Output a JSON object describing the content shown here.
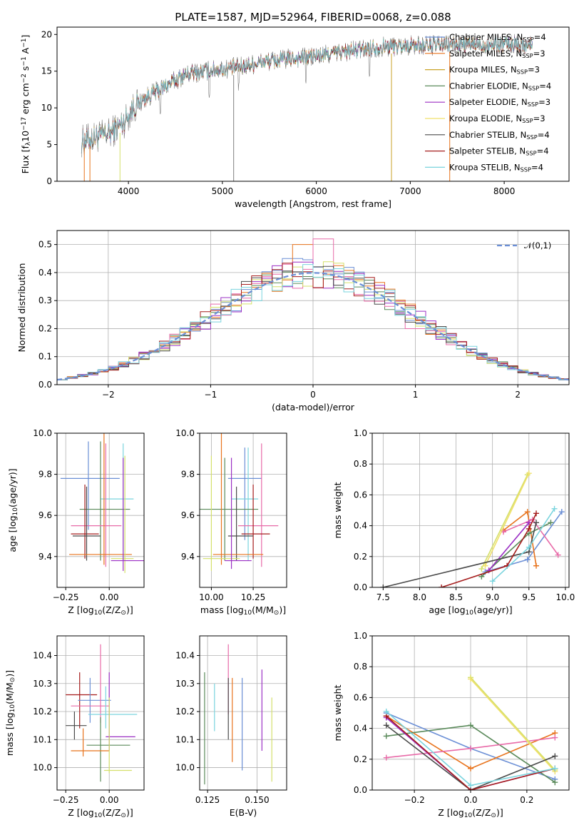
{
  "colors": {
    "palette": [
      "#6b8fd6",
      "#e8731c",
      "#5a8a5a",
      "#e86aa8",
      "#2a9c8e",
      "#9b2fc4",
      "#f0c84a",
      "#7ad4de",
      "#d4e06a",
      "#4a4a4a",
      "#a51c1c",
      "#8a8a8a"
    ],
    "data_spectrum": "#7f7f7f",
    "gaussian": "#6b8fd6"
  },
  "chart_data": [
    {
      "id": "spectrum",
      "type": "line",
      "title": "PLATE=1587, MJD=52964, FIBERID=0068, z=0.088",
      "xlabel": "wavelength [Angstrom, rest frame]",
      "ylabel": "Flux [f$_\\lambda$10$^{-17}$ erg cm$^{-2}$ s$^{-1}$ A$^{-1}$]",
      "xlim": [
        3240,
        8690
      ],
      "ylim": [
        0,
        21
      ],
      "xticks": [
        4000,
        5000,
        6000,
        7000,
        8000
      ],
      "yticks": [
        0,
        5,
        10,
        15,
        20
      ],
      "grid": false,
      "legend_placement": "top-right",
      "continuum": {
        "x": [
          3500,
          3650,
          3800,
          3950,
          4050,
          4200,
          4400,
          4600,
          4800,
          5000,
          5200,
          5400,
          5600,
          5800,
          6000,
          6200,
          6400,
          6600,
          6800,
          7000,
          7200,
          7400,
          7600,
          7800,
          8000,
          8200,
          8300
        ],
        "y": [
          5.5,
          6.0,
          6.5,
          8.0,
          10.0,
          11.5,
          13.0,
          14.5,
          15.0,
          15.3,
          15.6,
          16.2,
          16.5,
          16.8,
          17.0,
          17.5,
          17.8,
          18.2,
          18.4,
          18.5,
          18.5,
          18.6,
          18.6,
          18.6,
          18.7,
          18.6,
          18.5
        ]
      },
      "series": [
        {
          "name": "Chabrier MILES, N$_{SSP}$=4",
          "color": "#6b8fd6"
        },
        {
          "name": "Salpeter MILES, N$_{SSP}$=3",
          "color": "#e8731c"
        },
        {
          "name": "Kroupa MILES, N$_{SSP}$=3",
          "color": "#c9a227"
        },
        {
          "name": "Chabrier ELODIE, N$_{SSP}$=4",
          "color": "#5a8a5a"
        },
        {
          "name": "Salpeter ELODIE, N$_{SSP}$=3",
          "color": "#9b2fc4"
        },
        {
          "name": "Kroupa ELODIE, N$_{SSP}$=3",
          "color": "#f0e06a"
        },
        {
          "name": "Chabrier STELIB, N$_{SSP}$=4",
          "color": "#4a4a4a"
        },
        {
          "name": "Salpeter STELIB, N$_{SSP}$=4",
          "color": "#a51c1c"
        },
        {
          "name": "Kroupa STELIB, N$_{SSP}$=4",
          "color": "#7ad4de"
        }
      ]
    },
    {
      "id": "residuals",
      "type": "step",
      "xlabel": "(data-model)/error",
      "ylabel": "Normed distribution",
      "xlim": [
        -2.5,
        2.5
      ],
      "ylim": [
        0,
        0.55
      ],
      "xticks": [
        -2,
        -1,
        0,
        1,
        2
      ],
      "yticks": [
        0.0,
        0.1,
        0.2,
        0.3,
        0.4,
        0.5
      ],
      "grid": true,
      "legend_placement": "top-right",
      "gaussian_label": "$\\mathcal{N}(0,1)$",
      "bin_width": 0.1,
      "envelope_peak": 0.4,
      "series_colors": [
        "#6b8fd6",
        "#e8731c",
        "#5a8a5a",
        "#e86aa8",
        "#9b2fc4",
        "#d4e06a",
        "#4a4a4a",
        "#a51c1c",
        "#7ad4de"
      ],
      "highlights": [
        {
          "x": -1.0,
          "y": 0.24
        },
        {
          "x": -0.2,
          "y": 0.45
        },
        {
          "x": -0.1,
          "y": 0.5
        },
        {
          "x": 0.1,
          "y": 0.52
        },
        {
          "x": 0.4,
          "y": 0.38
        },
        {
          "x": 1.0,
          "y": 0.2
        }
      ]
    },
    {
      "id": "age_vs_Z",
      "type": "errorbar",
      "xlabel": "Z [log$_{10}$(Z/Z$_\\odot$)]",
      "ylabel": "age  [log$_{10}$(age/yr)]",
      "xlim": [
        -0.3,
        0.2
      ],
      "ylim": [
        9.25,
        10.0
      ],
      "xticks": [
        -0.25,
        0.0
      ],
      "xticklabels": [
        "−0.25",
        "0.00"
      ],
      "yticks": [
        9.4,
        9.6,
        9.8,
        10.0
      ],
      "grid": true,
      "points": [
        {
          "x": -0.12,
          "y": 9.78,
          "xerr": [
            0.16,
            0.18
          ],
          "yerr": [
            0.25,
            0.18
          ],
          "color": "#6b8fd6"
        },
        {
          "x": 0.08,
          "y": 9.68,
          "xerr": [
            0.13,
            0.06
          ],
          "yerr": [
            0.3,
            0.27
          ],
          "color": "#7ad4de"
        },
        {
          "x": -0.05,
          "y": 9.63,
          "xerr": [
            0.12,
            0.17
          ],
          "yerr": [
            0.25,
            0.33
          ],
          "color": "#5a8a5a"
        },
        {
          "x": -0.02,
          "y": 9.55,
          "xerr": [
            0.2,
            0.09
          ],
          "yerr": [
            0.2,
            0.4
          ],
          "color": "#e86aa8"
        },
        {
          "x": -0.14,
          "y": 9.51,
          "xerr": [
            0.08,
            0.08
          ],
          "yerr": [
            0.12,
            0.24
          ],
          "color": "#a51c1c"
        },
        {
          "x": -0.13,
          "y": 9.5,
          "xerr": [
            0.08,
            0.08
          ],
          "yerr": [
            0.12,
            0.24
          ],
          "color": "#4a4a4a"
        },
        {
          "x": -0.03,
          "y": 9.41,
          "xerr": [
            0.2,
            0.16
          ],
          "yerr": [
            0.05,
            0.65
          ],
          "color": "#e8731c"
        },
        {
          "x": 0.09,
          "y": 9.39,
          "xerr": [
            0.08,
            0.05
          ],
          "yerr": [
            0.07,
            0.5
          ],
          "color": "#d4e06a"
        },
        {
          "x": 0.08,
          "y": 9.38,
          "xerr": [
            0.07,
            0.13
          ],
          "yerr": [
            0.05,
            0.5
          ],
          "color": "#9b2fc4"
        }
      ]
    },
    {
      "id": "age_vs_mass",
      "type": "errorbar",
      "xlabel": "mass [log$_{10}$(M/M$_\\odot$)]",
      "ylabel": "",
      "xlim": [
        9.93,
        10.45
      ],
      "ylim": [
        9.25,
        10.0
      ],
      "xticks": [
        10.0,
        10.25
      ],
      "xticklabels": [
        "10.00",
        "10.25"
      ],
      "yticks": [
        9.4,
        9.6,
        9.8,
        10.0
      ],
      "grid": true,
      "points": [
        {
          "x": 10.2,
          "y": 9.78,
          "xerr": [
            0.1,
            0.1
          ],
          "yerr": [
            0.3,
            0.15
          ],
          "color": "#6b8fd6"
        },
        {
          "x": 10.22,
          "y": 9.68,
          "xerr": [
            0.1,
            0.06
          ],
          "yerr": [
            0.3,
            0.25
          ],
          "color": "#7ad4de"
        },
        {
          "x": 10.08,
          "y": 9.63,
          "xerr": [
            0.16,
            0.2
          ],
          "yerr": [
            0.25,
            0.25
          ],
          "color": "#5a8a5a"
        },
        {
          "x": 10.3,
          "y": 9.55,
          "xerr": [
            0.14,
            0.1
          ],
          "yerr": [
            0.2,
            0.4
          ],
          "color": "#e86aa8"
        },
        {
          "x": 10.25,
          "y": 9.51,
          "xerr": [
            0.07,
            0.1
          ],
          "yerr": [
            0.12,
            0.24
          ],
          "color": "#a51c1c"
        },
        {
          "x": 10.15,
          "y": 9.5,
          "xerr": [
            0.05,
            0.1
          ],
          "yerr": [
            0.12,
            0.24
          ],
          "color": "#4a4a4a"
        },
        {
          "x": 10.06,
          "y": 9.41,
          "xerr": [
            0.05,
            0.25
          ],
          "yerr": [
            0.05,
            0.6
          ],
          "color": "#e8731c"
        },
        {
          "x": 10.0,
          "y": 9.39,
          "xerr": [
            0.05,
            0.17
          ],
          "yerr": [
            0.06,
            0.5
          ],
          "color": "#d4e06a"
        },
        {
          "x": 10.12,
          "y": 9.38,
          "xerr": [
            0.04,
            0.12
          ],
          "yerr": [
            0.04,
            0.5
          ],
          "color": "#9b2fc4"
        }
      ]
    },
    {
      "id": "weight_vs_age",
      "type": "line",
      "xlabel": "age  [log$_{10}$(age/yr)]",
      "ylabel": "mass weight",
      "xlim": [
        7.35,
        10.05
      ],
      "ylim": [
        0,
        1.0
      ],
      "xticks": [
        7.5,
        8.0,
        8.5,
        9.0,
        9.5,
        10.0
      ],
      "xticklabels": [
        "7.5",
        "8.0",
        "8.5",
        "9.0",
        "9.5",
        "10.0"
      ],
      "yticks": [
        0,
        0.2,
        0.4,
        0.6,
        0.8,
        1.0
      ],
      "yticklabels": [
        "0.0",
        "0.2",
        "0.4",
        "0.6",
        "0.8",
        "1.0"
      ],
      "grid": true,
      "series": [
        {
          "color": "#6b8fd6",
          "x": [
            8.9,
            9.48,
            9.95
          ],
          "y": [
            0.1,
            0.18,
            0.49
          ]
        },
        {
          "color": "#e8731c",
          "x": [
            9.15,
            9.48,
            9.6
          ],
          "y": [
            0.37,
            0.49,
            0.14
          ]
        },
        {
          "color": "#5a8a5a",
          "x": [
            8.85,
            9.5,
            9.8
          ],
          "y": [
            0.07,
            0.35,
            0.42
          ]
        },
        {
          "color": "#e86aa8",
          "x": [
            9.15,
            9.55,
            9.9
          ],
          "y": [
            0.36,
            0.44,
            0.21
          ]
        },
        {
          "color": "#9b2fc4",
          "x": [
            8.95,
            9.5
          ],
          "y": [
            0.11,
            0.42
          ]
        },
        {
          "color": "#d4e06a",
          "x": [
            8.85,
            9.48
          ],
          "y": [
            0.12,
            0.73
          ]
        },
        {
          "color": "#f0e06a",
          "x": [
            8.9,
            9.5
          ],
          "y": [
            0.14,
            0.74
          ]
        },
        {
          "color": "#4a4a4a",
          "x": [
            7.5,
            9.5,
            9.6
          ],
          "y": [
            0.0,
            0.23,
            0.42
          ]
        },
        {
          "color": "#a51c1c",
          "x": [
            8.3,
            9.2,
            9.5,
            9.6
          ],
          "y": [
            0.0,
            0.14,
            0.38,
            0.48
          ]
        },
        {
          "color": "#7ad4de",
          "x": [
            9.0,
            9.5,
            9.85
          ],
          "y": [
            0.04,
            0.26,
            0.51
          ]
        }
      ]
    },
    {
      "id": "mass_vs_Z",
      "type": "errorbar",
      "xlabel": "Z [log$_{10}$(Z/Z$_\\odot$)]",
      "ylabel": "mass [log$_{10}$(M/M$_\\odot$)]",
      "xlim": [
        -0.3,
        0.2
      ],
      "ylim": [
        9.92,
        10.47
      ],
      "xticks": [
        -0.25,
        0.0
      ],
      "xticklabels": [
        "−0.25",
        "0.00"
      ],
      "yticks": [
        10.0,
        10.1,
        10.2,
        10.3,
        10.4
      ],
      "grid": true,
      "points": [
        {
          "x": -0.17,
          "y": 10.26,
          "xerr": [
            0.08,
            0.1
          ],
          "yerr": [
            0.12,
            0.08
          ],
          "color": "#a51c1c"
        },
        {
          "x": -0.11,
          "y": 10.24,
          "xerr": [
            0.07,
            0.12
          ],
          "yerr": [
            0.08,
            0.08
          ],
          "color": "#6b8fd6"
        },
        {
          "x": -0.05,
          "y": 10.22,
          "xerr": [
            0.17,
            0.05
          ],
          "yerr": [
            0.06,
            0.22
          ],
          "color": "#e86aa8"
        },
        {
          "x": -0.02,
          "y": 10.19,
          "xerr": [
            0.1,
            0.18
          ],
          "yerr": [
            0.05,
            0.1
          ],
          "color": "#7ad4de"
        },
        {
          "x": -0.2,
          "y": 10.15,
          "xerr": [
            0.05,
            0.07
          ],
          "yerr": [
            0.05,
            0.05
          ],
          "color": "#4a4a4a"
        },
        {
          "x": 0.0,
          "y": 10.11,
          "xerr": [
            0.02,
            0.15
          ],
          "yerr": [
            0.05,
            0.23
          ],
          "color": "#9b2fc4"
        },
        {
          "x": -0.05,
          "y": 10.08,
          "xerr": [
            0.08,
            0.17
          ],
          "yerr": [
            0.13,
            0.1
          ],
          "color": "#5a8a5a"
        },
        {
          "x": -0.15,
          "y": 10.06,
          "xerr": [
            0.07,
            0.15
          ],
          "yerr": [
            0.02,
            0.08
          ],
          "color": "#e8731c"
        },
        {
          "x": 0.0,
          "y": 9.99,
          "xerr": [
            0.03,
            0.13
          ],
          "yerr": [
            0.01,
            0.26
          ],
          "color": "#d4e06a"
        }
      ]
    },
    {
      "id": "mass_vs_ebv",
      "type": "errorbar",
      "xlabel": "E(B-V)",
      "ylabel": "",
      "xlim": [
        0.121,
        0.165
      ],
      "ylim": [
        9.92,
        10.47
      ],
      "xticks": [
        0.125,
        0.15
      ],
      "xticklabels": [
        "0.125",
        "0.150"
      ],
      "yticks": [
        10.0,
        10.1,
        10.2,
        10.3,
        10.4
      ],
      "grid": true,
      "points": [
        {
          "x": 0.1235,
          "y": 10.14,
          "yerr": [
            0.2,
            0.2
          ],
          "color": "#5a8a5a"
        },
        {
          "x": 0.1285,
          "y": 10.21,
          "yerr": [
            0.08,
            0.09
          ],
          "color": "#7ad4de"
        },
        {
          "x": 0.1355,
          "y": 10.32,
          "yerr": [
            0.13,
            0.12
          ],
          "color": "#e86aa8"
        },
        {
          "x": 0.1355,
          "y": 10.2,
          "yerr": [
            0.1,
            0.12
          ],
          "color": "#4a4a4a"
        },
        {
          "x": 0.1375,
          "y": 10.17,
          "yerr": [
            0.15,
            0.15
          ],
          "color": "#e8731c"
        },
        {
          "x": 0.1425,
          "y": 10.16,
          "yerr": [
            0.17,
            0.16
          ],
          "color": "#6b8fd6"
        },
        {
          "x": 0.1525,
          "y": 10.2,
          "yerr": [
            0.14,
            0.15
          ],
          "color": "#9b2fc4"
        },
        {
          "x": 0.1575,
          "y": 10.09,
          "yerr": [
            0.14,
            0.16
          ],
          "color": "#d4e06a"
        }
      ]
    },
    {
      "id": "weight_vs_Z",
      "type": "line",
      "xlabel": "Z [log$_{10}$(Z/Z$_\\odot$)]",
      "ylabel": "mass weight",
      "xlim": [
        -0.35,
        0.35
      ],
      "ylim": [
        0,
        1.0
      ],
      "xticks": [
        -0.2,
        0.0,
        0.2
      ],
      "xticklabels": [
        "−0.2",
        "0.0",
        "0.2"
      ],
      "yticks": [
        0,
        0.2,
        0.4,
        0.6,
        0.8,
        1.0
      ],
      "yticklabels": [
        "0.0",
        "0.2",
        "0.4",
        "0.6",
        "0.8",
        "1.0"
      ],
      "grid": true,
      "series": [
        {
          "color": "#6b8fd6",
          "x": [
            -0.3,
            0.0,
            0.3
          ],
          "y": [
            0.5,
            0.27,
            0.07
          ]
        },
        {
          "color": "#e8731c",
          "x": [
            -0.3,
            0.0,
            0.3
          ],
          "y": [
            0.48,
            0.14,
            0.37
          ]
        },
        {
          "color": "#5a8a5a",
          "x": [
            -0.3,
            0.0,
            0.3
          ],
          "y": [
            0.35,
            0.42,
            0.05
          ]
        },
        {
          "color": "#e86aa8",
          "x": [
            -0.3,
            0.0,
            0.3
          ],
          "y": [
            0.21,
            0.27,
            0.34
          ]
        },
        {
          "color": "#9b2fc4",
          "x": [
            -0.3,
            0.0,
            0.3
          ],
          "y": [
            0.47,
            0.0,
            0.14
          ]
        },
        {
          "color": "#d4e06a",
          "x": [
            0.0,
            0.3
          ],
          "y": [
            0.73,
            0.13
          ]
        },
        {
          "color": "#f0e06a",
          "x": [
            0.0,
            0.3
          ],
          "y": [
            0.72,
            0.12
          ]
        },
        {
          "color": "#4a4a4a",
          "x": [
            -0.3,
            0.0,
            0.3
          ],
          "y": [
            0.42,
            0.0,
            0.22
          ]
        },
        {
          "color": "#a51c1c",
          "x": [
            -0.3,
            0.0,
            0.3
          ],
          "y": [
            0.48,
            0.0,
            0.14
          ]
        },
        {
          "color": "#7ad4de",
          "x": [
            -0.3,
            0.0,
            0.3
          ],
          "y": [
            0.51,
            0.03,
            0.14
          ]
        }
      ]
    }
  ]
}
